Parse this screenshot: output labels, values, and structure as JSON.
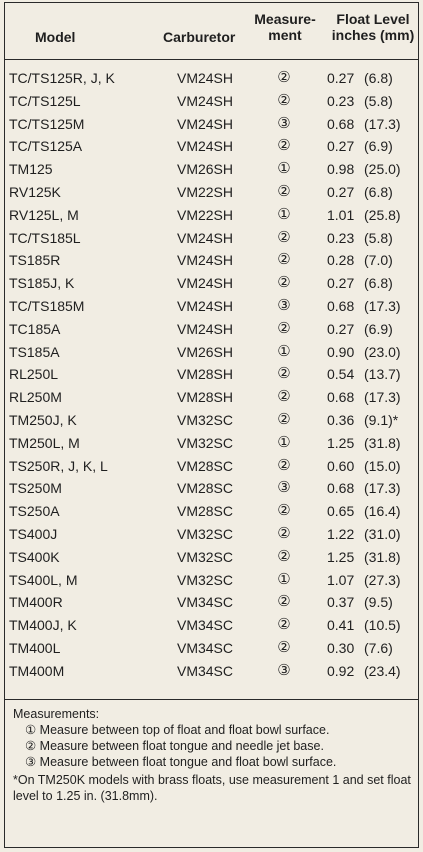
{
  "header": {
    "model": "Model",
    "carburetor": "Carburetor",
    "measurement": "Measure-\nment",
    "float_level": "Float Level\ninches (mm)"
  },
  "rows": [
    {
      "model": "TC/TS125R, J, K",
      "carb": "VM24SH",
      "meas": "②",
      "in": "0.27",
      "mm": "(6.8)"
    },
    {
      "model": "TC/TS125L",
      "carb": "VM24SH",
      "meas": "②",
      "in": "0.23",
      "mm": "(5.8)"
    },
    {
      "model": "TC/TS125M",
      "carb": "VM24SH",
      "meas": "③",
      "in": "0.68",
      "mm": "(17.3)"
    },
    {
      "model": "TC/TS125A",
      "carb": "VM24SH",
      "meas": "②",
      "in": "0.27",
      "mm": "(6.9)"
    },
    {
      "model": "TM125",
      "carb": "VM26SH",
      "meas": "①",
      "in": "0.98",
      "mm": "(25.0)"
    },
    {
      "model": "RV125K",
      "carb": "VM22SH",
      "meas": "②",
      "in": "0.27",
      "mm": "(6.8)"
    },
    {
      "model": "RV125L, M",
      "carb": "VM22SH",
      "meas": "①",
      "in": "1.01",
      "mm": "(25.8)"
    },
    {
      "model": "TC/TS185L",
      "carb": "VM24SH",
      "meas": "②",
      "in": "0.23",
      "mm": "(5.8)"
    },
    {
      "model": "TS185R",
      "carb": "VM24SH",
      "meas": "②",
      "in": "0.28",
      "mm": "(7.0)"
    },
    {
      "model": "TS185J, K",
      "carb": "VM24SH",
      "meas": "②",
      "in": "0.27",
      "mm": "(6.8)"
    },
    {
      "model": "TC/TS185M",
      "carb": "VM24SH",
      "meas": "③",
      "in": "0.68",
      "mm": "(17.3)"
    },
    {
      "model": "TC185A",
      "carb": "VM24SH",
      "meas": "②",
      "in": "0.27",
      "mm": "(6.9)"
    },
    {
      "model": "TS185A",
      "carb": "VM26SH",
      "meas": "①",
      "in": "0.90",
      "mm": "(23.0)"
    },
    {
      "model": "RL250L",
      "carb": "VM28SH",
      "meas": "②",
      "in": "0.54",
      "mm": "(13.7)"
    },
    {
      "model": "RL250M",
      "carb": "VM28SH",
      "meas": "②",
      "in": "0.68",
      "mm": "(17.3)"
    },
    {
      "model": "TM250J, K",
      "carb": "VM32SC",
      "meas": "②",
      "in": "0.36",
      "mm": "(9.1)*"
    },
    {
      "model": "TM250L, M",
      "carb": "VM32SC",
      "meas": "①",
      "in": "1.25",
      "mm": "(31.8)"
    },
    {
      "model": "TS250R, J, K, L",
      "carb": "VM28SC",
      "meas": "②",
      "in": "0.60",
      "mm": "(15.0)"
    },
    {
      "model": "TS250M",
      "carb": "VM28SC",
      "meas": "③",
      "in": "0.68",
      "mm": "(17.3)"
    },
    {
      "model": "TS250A",
      "carb": "VM28SC",
      "meas": "②",
      "in": "0.65",
      "mm": "(16.4)"
    },
    {
      "model": "TS400J",
      "carb": "VM32SC",
      "meas": "②",
      "in": "1.22",
      "mm": "(31.0)"
    },
    {
      "model": "TS400K",
      "carb": "VM32SC",
      "meas": "②",
      "in": "1.25",
      "mm": "(31.8)"
    },
    {
      "model": "TS400L, M",
      "carb": "VM32SC",
      "meas": "①",
      "in": "1.07",
      "mm": "(27.3)"
    },
    {
      "model": "TM400R",
      "carb": "VM34SC",
      "meas": "②",
      "in": "0.37",
      "mm": "(9.5)"
    },
    {
      "model": "TM400J, K",
      "carb": "VM34SC",
      "meas": "②",
      "in": "0.41",
      "mm": "(10.5)"
    },
    {
      "model": "TM400L",
      "carb": "VM34SC",
      "meas": "②",
      "in": "0.30",
      "mm": "(7.6)"
    },
    {
      "model": "TM400M",
      "carb": "VM34SC",
      "meas": "③",
      "in": "0.92",
      "mm": "(23.4)"
    }
  ],
  "notes": {
    "title": "Measurements:",
    "items": [
      "① Measure between top of float and float bowl surface.",
      "② Measure between float tongue and needle jet base.",
      "③ Measure between float tongue and float bowl surface."
    ],
    "footnote": "*On TM250K models with brass floats, use measurement 1 and set float level to 1.25 in. (31.8mm)."
  }
}
